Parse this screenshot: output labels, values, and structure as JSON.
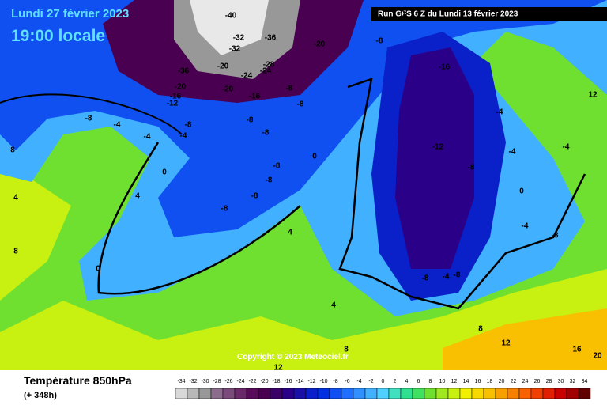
{
  "header": {
    "date": "Lundi 27 février 2023",
    "time": "19:00 locale",
    "run": "Run GFS 6 Z du Lundi 13 février 2023",
    "copyright": "Copyright © 2023 Meteociel.fr"
  },
  "footer": {
    "title": "Température 850hPa",
    "lead": "(+ 348h)"
  },
  "scale": [
    {
      "value": -34,
      "color": "#d8d8d8"
    },
    {
      "value": -32,
      "color": "#b8b8b8"
    },
    {
      "value": -30,
      "color": "#989898"
    },
    {
      "value": -28,
      "color": "#8c6c8c"
    },
    {
      "value": -26,
      "color": "#7a4a7a"
    },
    {
      "value": -24,
      "color": "#6a2a6a"
    },
    {
      "value": -22,
      "color": "#5a0a5a"
    },
    {
      "value": -20,
      "color": "#4a0050"
    },
    {
      "value": -18,
      "color": "#3a0068"
    },
    {
      "value": -16,
      "color": "#2a0088"
    },
    {
      "value": -14,
      "color": "#1a10a8"
    },
    {
      "value": -12,
      "color": "#0a20c8"
    },
    {
      "value": -10,
      "color": "#0030e0"
    },
    {
      "value": -8,
      "color": "#1050f0"
    },
    {
      "value": -6,
      "color": "#2070ff"
    },
    {
      "value": -4,
      "color": "#3090ff"
    },
    {
      "value": -2,
      "color": "#40b0ff"
    },
    {
      "value": 0,
      "color": "#50d0ff"
    },
    {
      "value": 2,
      "color": "#40e0c0"
    },
    {
      "value": 4,
      "color": "#30e090"
    },
    {
      "value": 6,
      "color": "#40e060"
    },
    {
      "value": 8,
      "color": "#70e030"
    },
    {
      "value": 10,
      "color": "#a0e820"
    },
    {
      "value": 12,
      "color": "#c8f010"
    },
    {
      "value": 14,
      "color": "#f0f000"
    },
    {
      "value": 16,
      "color": "#f8d800"
    },
    {
      "value": 18,
      "color": "#f8c000"
    },
    {
      "value": 20,
      "color": "#f8a000"
    },
    {
      "value": 22,
      "color": "#f88000"
    },
    {
      "value": 24,
      "color": "#f86000"
    },
    {
      "value": 26,
      "color": "#f04000"
    },
    {
      "value": 28,
      "color": "#e02000"
    },
    {
      "value": 30,
      "color": "#c80000"
    },
    {
      "value": 32,
      "color": "#a00000"
    },
    {
      "value": 34,
      "color": "#600000"
    }
  ],
  "map_labels": [
    "-40",
    "-32",
    "-36",
    "-32",
    "-36",
    "-20",
    "-28",
    "-24",
    "-20",
    "-24",
    "-20",
    "-16",
    "-12",
    "-20",
    "-16",
    "-8",
    "-8",
    "-8",
    "-4",
    "-8",
    "-4",
    "-8",
    "-8",
    "-4",
    "0",
    "4",
    "-8",
    "-8",
    "-8",
    "-8",
    "0",
    "-16",
    "-12",
    "-8",
    "-8",
    "-4",
    "-4",
    "0",
    "-8",
    "-4",
    "-8",
    "-8",
    "8",
    "4",
    "0",
    "4",
    "8",
    "12",
    "8",
    "12",
    "16",
    "20",
    "4",
    "8",
    "-4",
    "-4",
    "-8",
    "12"
  ]
}
